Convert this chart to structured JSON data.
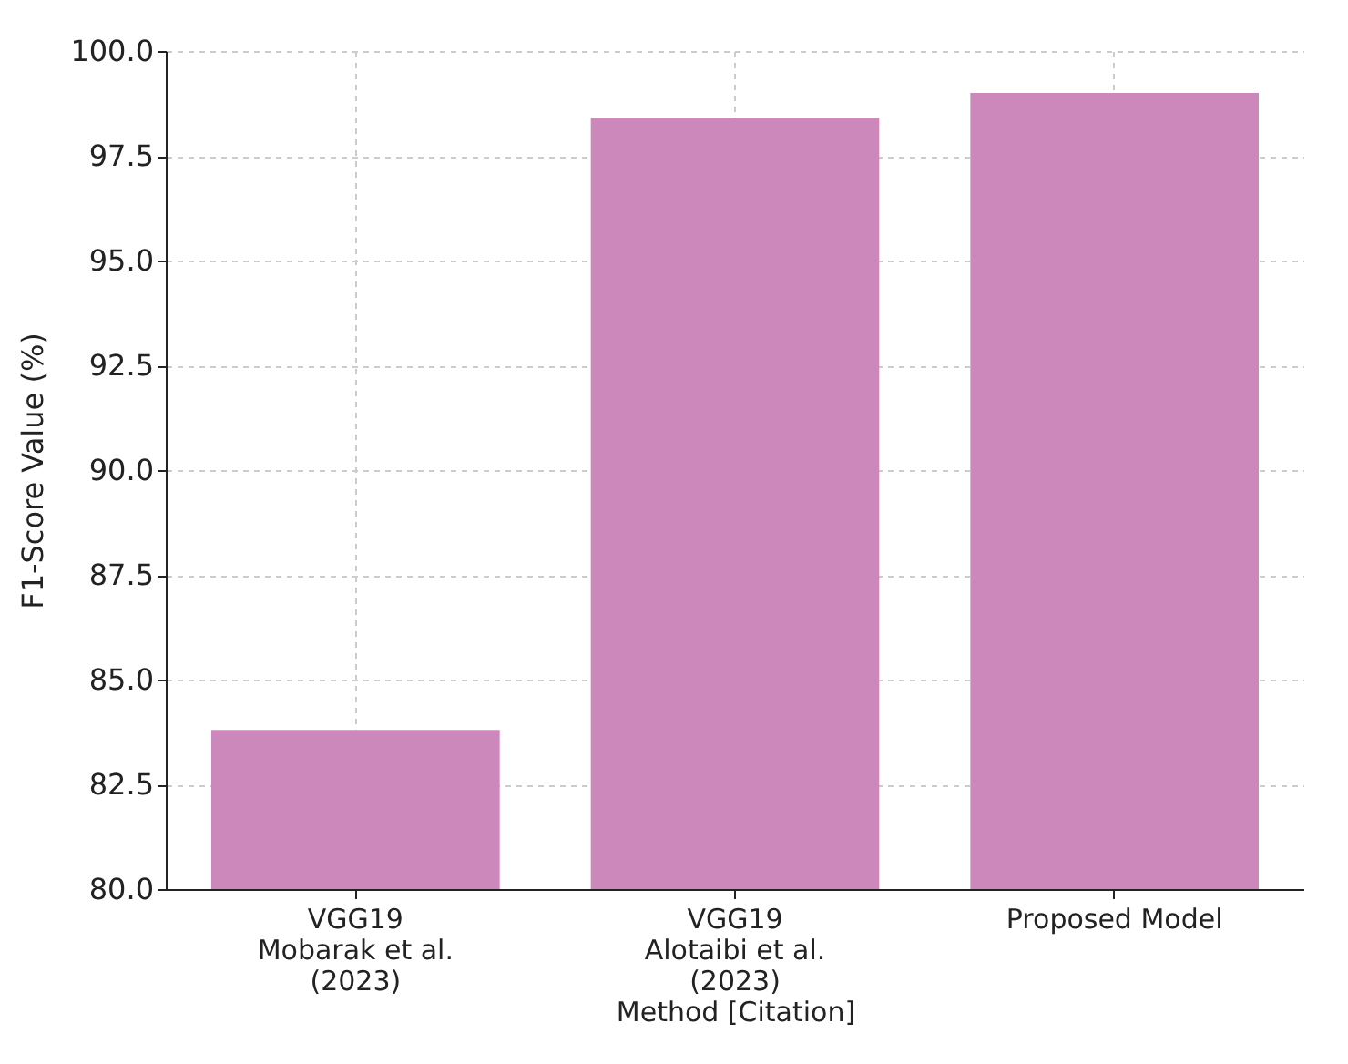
{
  "chart_data": {
    "type": "bar",
    "xlabel": "Method [Citation]",
    "ylabel": "F1-Score Value (%)",
    "categories": [
      "VGG19\nMobarak et al.\n(2023)",
      "VGG19\nAlotaibi et al.\n(2023)",
      "Proposed Model"
    ],
    "values": [
      83.8,
      98.4,
      99.0
    ],
    "color": "#cc88bb",
    "ylim": [
      80,
      100
    ],
    "yticks": [
      {
        "value": 80,
        "label": "80.0"
      },
      {
        "value": 82.5,
        "label": "82.5"
      },
      {
        "value": 85,
        "label": "85.0"
      },
      {
        "value": 87.5,
        "label": "87.5"
      },
      {
        "value": 90,
        "label": "90.0"
      },
      {
        "value": 92.5,
        "label": "92.5"
      },
      {
        "value": 95,
        "label": "95.0"
      },
      {
        "value": 97.5,
        "label": "97.5"
      },
      {
        "value": 100,
        "label": "100.0"
      }
    ],
    "grid": true
  }
}
